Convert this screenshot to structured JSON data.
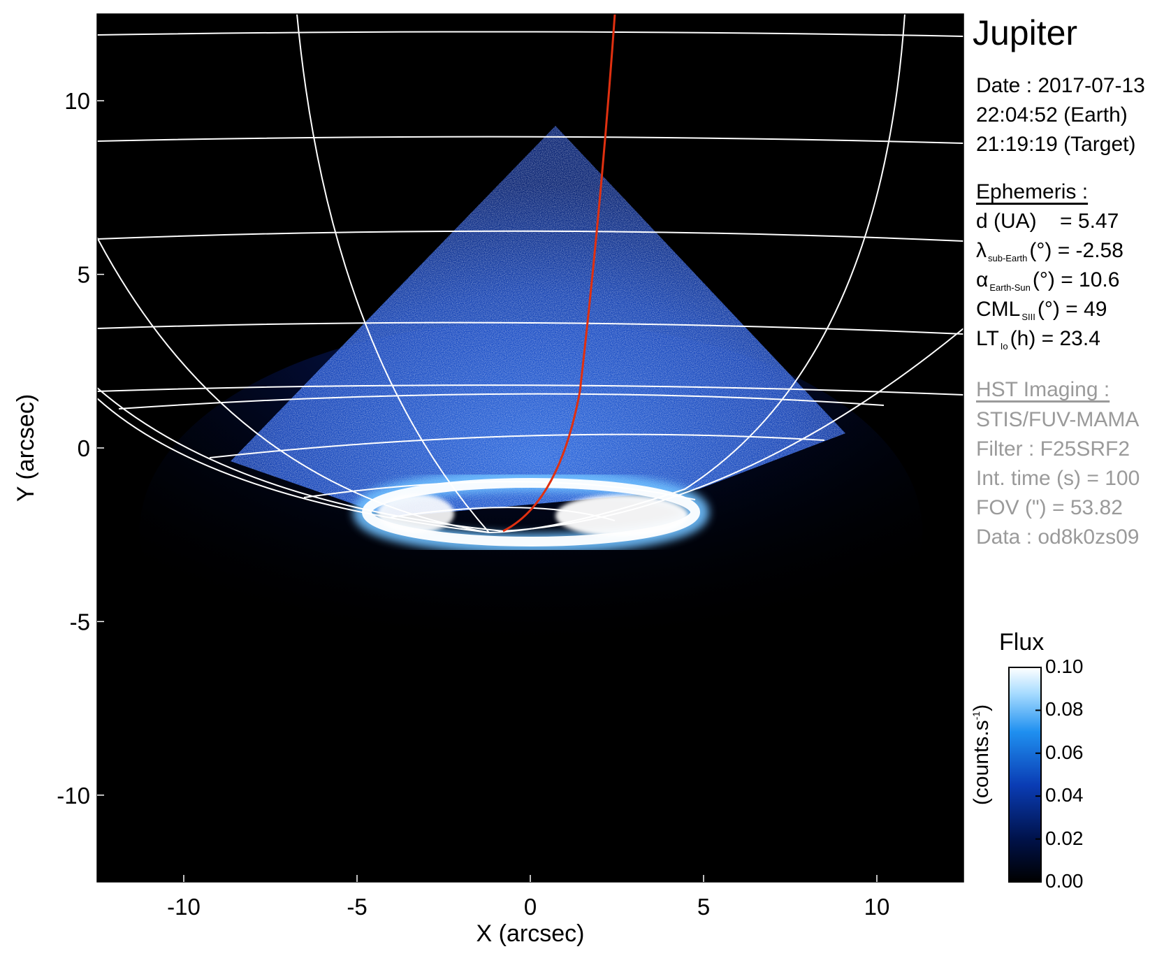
{
  "panel": {
    "title": "Jupiter",
    "date_line": "Date : 2017-07-13",
    "earth_time": "22:04:52 (Earth)",
    "target_time": "21:19:19 (Target)"
  },
  "ephemeris": {
    "header": "Ephemeris :",
    "d_label": "d (UA)",
    "d_value": "= 5.47",
    "lat_symbol": "λ",
    "lat_sub": "sub-Earth",
    "lat_value": "(°) = -2.58",
    "alpha_symbol": "α",
    "alpha_sub": "Earth-Sun",
    "alpha_value": "(°) = 10.6",
    "cml_label": "CML",
    "cml_sub": "SIII",
    "cml_value": "(°) = 49",
    "lt_label": "LT",
    "lt_sub": "Io",
    "lt_value": "(h) = 23.4"
  },
  "imaging": {
    "header": "HST Imaging :",
    "instrument": "STIS/FUV-MAMA",
    "filter": "Filter : F25SRF2",
    "int_time": "Int. time (s) = 100",
    "fov": "FOV (\") = 53.82",
    "data": "Data : od8k0zs09"
  },
  "colorbar": {
    "title": "Flux",
    "unit_prefix": "(counts.s",
    "unit_sup": "-1",
    "unit_suffix": ")",
    "ticks": [
      "0.10",
      "0.08",
      "0.06",
      "0.04",
      "0.02",
      "0.00"
    ],
    "range": [
      0.0,
      0.1
    ]
  },
  "axes": {
    "xlabel": "X (arcsec)",
    "ylabel": "Y (arcsec)",
    "xticks": [
      "-10",
      "-5",
      "0",
      "5",
      "10"
    ],
    "yticks": [
      "10",
      "5",
      "0",
      "-5",
      "-10"
    ],
    "xlim": [
      -12.5,
      12.5
    ],
    "ylim": [
      -12.5,
      12.5
    ]
  },
  "colors": {
    "background": "#000000",
    "grid": "#ffffff",
    "io_footpath": "#e03010",
    "emission_mid": "#1f5fd8",
    "emission_high": "#ffffff"
  }
}
